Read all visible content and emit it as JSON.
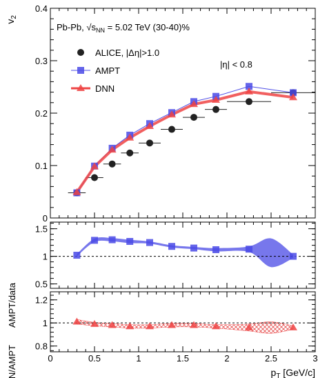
{
  "chart_data": [
    {
      "type": "scatter",
      "panel": "top",
      "ylabel": "v",
      "ylabel_sub": "2",
      "ylim": [
        0,
        0.4
      ],
      "yticks": [
        "0",
        "0.1",
        "0.2",
        "0.3",
        "0.4"
      ],
      "annotations": {
        "system_prefix": "Pb-Pb, ",
        "sqrt": "s",
        "sqrt_sub": "NN",
        "system_suffix": " = 5.02 TeV (30-40)%",
        "eta": "|η| < 0.8"
      },
      "legend_position": "top-left",
      "series": [
        {
          "name": "ALICE, |Δη|>1.0",
          "color": "#222222",
          "marker": "circle",
          "x": [
            0.3,
            0.5,
            0.7,
            0.9,
            1.125,
            1.375,
            1.625,
            1.875,
            2.25,
            2.75
          ],
          "xerr": [
            0.1,
            0.1,
            0.1,
            0.1,
            0.125,
            0.125,
            0.125,
            0.125,
            0.25,
            0.25
          ],
          "values": [
            0.048,
            0.077,
            0.103,
            0.124,
            0.143,
            0.169,
            0.192,
            0.207,
            0.222,
            0.239
          ]
        },
        {
          "name": "AMPT",
          "color": "#4a4ae6",
          "marker": "square",
          "x": [
            0.3,
            0.5,
            0.7,
            0.9,
            1.125,
            1.375,
            1.625,
            1.875,
            2.25,
            2.75
          ],
          "values": [
            0.048,
            0.099,
            0.133,
            0.158,
            0.18,
            0.201,
            0.222,
            0.232,
            0.251,
            0.239
          ]
        },
        {
          "name": "DNN",
          "color": "#ee4444",
          "marker": "triangle",
          "x": [
            0.3,
            0.5,
            0.7,
            0.9,
            1.125,
            1.375,
            1.625,
            1.875,
            2.25,
            2.75
          ],
          "values": [
            0.049,
            0.098,
            0.13,
            0.153,
            0.175,
            0.197,
            0.217,
            0.225,
            0.241,
            0.23
          ]
        }
      ]
    },
    {
      "type": "line",
      "panel": "middle",
      "ylabel": "AMPT/data",
      "ylim": [
        0.42,
        1.62
      ],
      "yticks": [
        "0.5",
        "1",
        "1.5"
      ],
      "reference_line": 1,
      "series": [
        {
          "name": "AMPT",
          "color": "#4a4ae6",
          "x": [
            0.3,
            0.5,
            0.7,
            0.9,
            1.125,
            1.375,
            1.625,
            1.875,
            2.25,
            2.75
          ],
          "values": [
            1.02,
            1.29,
            1.3,
            1.27,
            1.25,
            1.18,
            1.15,
            1.12,
            1.13,
            1.0
          ],
          "band_halfwidth": [
            0.02,
            0.03,
            0.03,
            0.03,
            0.02,
            0.02,
            0.02,
            0.03,
            0.05,
            0.03
          ]
        }
      ]
    },
    {
      "type": "line",
      "panel": "bottom",
      "ylabel": "DNN/AMPT",
      "ylim": [
        0.75,
        1.27
      ],
      "yticks": [
        "0.8",
        "1",
        "1.2"
      ],
      "reference_line": 1,
      "xlabel": "p",
      "xlabel_sub": "T",
      "xlabel_unit": " [GeV/c]",
      "xlim": [
        0,
        3
      ],
      "xticks": [
        "0",
        "0.5",
        "1",
        "1.5",
        "2",
        "2.5",
        "3"
      ],
      "series": [
        {
          "name": "DNN",
          "color": "#ee4444",
          "x": [
            0.3,
            0.5,
            0.7,
            0.9,
            1.125,
            1.375,
            1.625,
            1.875,
            2.25,
            2.75
          ],
          "values": [
            1.01,
            0.99,
            0.98,
            0.97,
            0.97,
            0.98,
            0.98,
            0.97,
            0.96,
            0.96
          ],
          "band_halfwidth": [
            0.02,
            0.015,
            0.015,
            0.015,
            0.015,
            0.015,
            0.015,
            0.015,
            0.03,
            0.015
          ]
        }
      ]
    }
  ]
}
